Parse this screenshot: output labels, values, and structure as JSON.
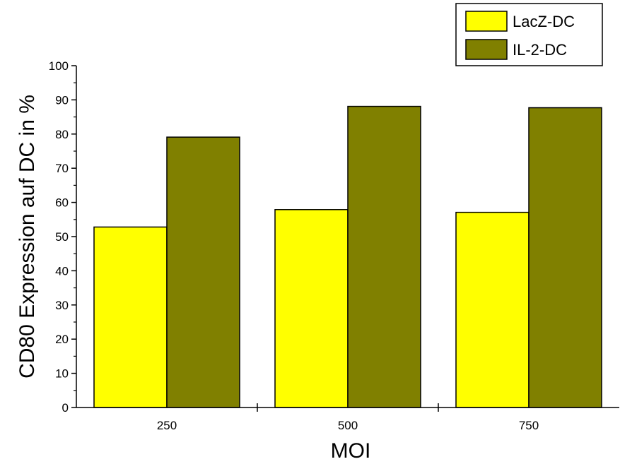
{
  "chart_data": {
    "type": "bar",
    "title": "",
    "xlabel": "MOI",
    "ylabel": "CD80 Expression auf DC in %",
    "categories": [
      "250",
      "500",
      "750"
    ],
    "ylim": [
      0,
      100
    ],
    "yticks": [
      0,
      10,
      20,
      30,
      40,
      50,
      60,
      70,
      80,
      90,
      100
    ],
    "grid": false,
    "legend_position": "top-right",
    "series": [
      {
        "name": "LacZ-DC",
        "color": "#ffff00",
        "values": [
          52.8,
          57.9,
          57.1
        ]
      },
      {
        "name": "IL-2-DC",
        "color": "#808000",
        "values": [
          79.1,
          88.1,
          87.7
        ]
      }
    ]
  }
}
